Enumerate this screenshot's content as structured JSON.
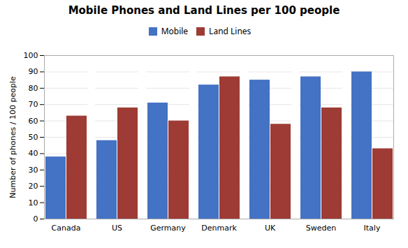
{
  "chart_data": {
    "type": "bar",
    "title": "Mobile Phones and Land Lines per 100 people",
    "ylabel": "Number of phones / 100 people",
    "categories": [
      "Canada",
      "US",
      "Germany",
      "Denmark",
      "UK",
      "Sweden",
      "Italy"
    ],
    "series": [
      {
        "name": "Mobile",
        "color": "#4472C4",
        "values": [
          38,
          48,
          71,
          82,
          85,
          87,
          90
        ]
      },
      {
        "name": "Land Lines",
        "color": "#9E3B35",
        "values": [
          63,
          68,
          60,
          87,
          58,
          68,
          43
        ]
      }
    ],
    "ylim": [
      0,
      100
    ],
    "yticks": [
      0,
      10,
      20,
      30,
      40,
      50,
      60,
      70,
      80,
      90,
      100
    ],
    "grid": true,
    "legend": "top"
  }
}
